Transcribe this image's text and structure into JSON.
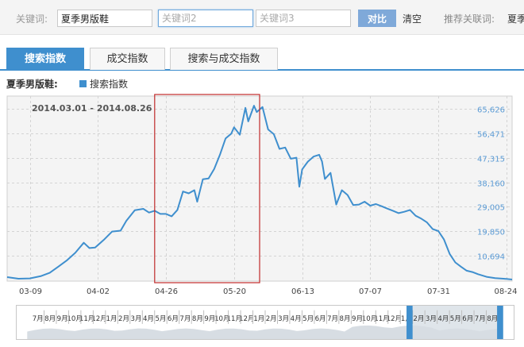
{
  "search": {
    "keyword_label": "关键词:",
    "keyword1_value": "夏季男版鞋",
    "keyword2_placeholder": "关键词2",
    "keyword3_placeholder": "关键词3",
    "compare_button": "对比",
    "clear_link": "清空",
    "recommend_label": "推荐关联词:",
    "recommend_item": "夏季"
  },
  "tabs": [
    {
      "label": "搜索指数",
      "active": true
    },
    {
      "label": "成交指数",
      "active": false
    },
    {
      "label": "搜索与成交指数",
      "active": false
    }
  ],
  "series_header": {
    "keyword": "夏季男版鞋:",
    "legend_label": "搜索指数"
  },
  "colors": {
    "accent": "#3f8fce",
    "highlight_border": "#c02a2a"
  },
  "chart_data": {
    "type": "line",
    "date_range": "2014.03.01 - 2014.08.26",
    "x_ticks": [
      "03-09",
      "04-02",
      "04-26",
      "05-20",
      "06-13",
      "07-07",
      "07-31",
      "08-24"
    ],
    "y_ticks": [
      "65,626",
      "56,471",
      "47,315",
      "38,160",
      "29,005",
      "19,850",
      "10,694"
    ],
    "ylim": [
      1100,
      70500
    ],
    "x_range": [
      "2014-03-01",
      "2014-08-26"
    ],
    "grid": true,
    "legend": "top-left",
    "selected_range": [
      "2014-04-22",
      "2014-05-29"
    ],
    "series": [
      {
        "name": "搜索指数",
        "points": [
          [
            "2014-03-01",
            2600
          ],
          [
            "2014-03-05",
            2000
          ],
          [
            "2014-03-09",
            2100
          ],
          [
            "2014-03-13",
            3000
          ],
          [
            "2014-03-16",
            4200
          ],
          [
            "2014-03-19",
            6500
          ],
          [
            "2014-03-22",
            8800
          ],
          [
            "2014-03-25",
            11700
          ],
          [
            "2014-03-28",
            15500
          ],
          [
            "2014-03-30",
            13500
          ],
          [
            "2014-04-01",
            13700
          ],
          [
            "2014-04-04",
            16500
          ],
          [
            "2014-04-07",
            19700
          ],
          [
            "2014-04-10",
            20000
          ],
          [
            "2014-04-12",
            23700
          ],
          [
            "2014-04-15",
            27700
          ],
          [
            "2014-04-18",
            28200
          ],
          [
            "2014-04-20",
            26800
          ],
          [
            "2014-04-22",
            27500
          ],
          [
            "2014-04-24",
            26300
          ],
          [
            "2014-04-26",
            26300
          ],
          [
            "2014-04-28",
            25400
          ],
          [
            "2014-04-30",
            27800
          ],
          [
            "2014-05-02",
            34700
          ],
          [
            "2014-05-04",
            34000
          ],
          [
            "2014-05-06",
            35200
          ],
          [
            "2014-05-07",
            30900
          ],
          [
            "2014-05-09",
            39300
          ],
          [
            "2014-05-11",
            39600
          ],
          [
            "2014-05-13",
            43200
          ],
          [
            "2014-05-15",
            48500
          ],
          [
            "2014-05-17",
            54600
          ],
          [
            "2014-05-19",
            56400
          ],
          [
            "2014-05-20",
            58800
          ],
          [
            "2014-05-22",
            56000
          ],
          [
            "2014-05-24",
            66100
          ],
          [
            "2014-05-25",
            61000
          ],
          [
            "2014-05-27",
            66900
          ],
          [
            "2014-05-28",
            64500
          ],
          [
            "2014-05-30",
            66400
          ],
          [
            "2014-06-01",
            58000
          ],
          [
            "2014-06-03",
            56200
          ],
          [
            "2014-06-05",
            50700
          ],
          [
            "2014-06-07",
            51200
          ],
          [
            "2014-06-09",
            47000
          ],
          [
            "2014-06-11",
            47400
          ],
          [
            "2014-06-12",
            36500
          ],
          [
            "2014-06-13",
            43000
          ],
          [
            "2014-06-15",
            45900
          ],
          [
            "2014-06-17",
            47800
          ],
          [
            "2014-06-19",
            48500
          ],
          [
            "2014-06-20",
            46000
          ],
          [
            "2014-06-21",
            39400
          ],
          [
            "2014-06-23",
            41700
          ],
          [
            "2014-06-25",
            29800
          ],
          [
            "2014-06-27",
            35200
          ],
          [
            "2014-06-29",
            33400
          ],
          [
            "2014-07-01",
            29600
          ],
          [
            "2014-07-03",
            29800
          ],
          [
            "2014-07-05",
            30900
          ],
          [
            "2014-07-07",
            29400
          ],
          [
            "2014-07-09",
            30000
          ],
          [
            "2014-07-11",
            29200
          ],
          [
            "2014-07-13",
            28300
          ],
          [
            "2014-07-15",
            27500
          ],
          [
            "2014-07-17",
            26600
          ],
          [
            "2014-07-19",
            27100
          ],
          [
            "2014-07-21",
            27800
          ],
          [
            "2014-07-23",
            25600
          ],
          [
            "2014-07-25",
            24500
          ],
          [
            "2014-07-27",
            23100
          ],
          [
            "2014-07-29",
            20600
          ],
          [
            "2014-07-31",
            19900
          ],
          [
            "2014-08-02",
            16700
          ],
          [
            "2014-08-04",
            11300
          ],
          [
            "2014-08-06",
            8100
          ],
          [
            "2014-08-08",
            6500
          ],
          [
            "2014-08-10",
            5000
          ],
          [
            "2014-08-12",
            4500
          ],
          [
            "2014-08-14",
            3700
          ],
          [
            "2014-08-17",
            2700
          ],
          [
            "2014-08-20",
            2200
          ],
          [
            "2014-08-24",
            1900
          ],
          [
            "2014-08-26",
            1700
          ]
        ]
      }
    ]
  },
  "timeline": {
    "month_labels": [
      "7月",
      "8月",
      "9月",
      "10月",
      "11月",
      "12月",
      "1月",
      "2月",
      "3月",
      "4月",
      "5月",
      "6月",
      "7月",
      "8月",
      "9月",
      "10月",
      "11月",
      "12月",
      "1月",
      "2月",
      "3月",
      "4月",
      "5月",
      "6月",
      "7月",
      "8月",
      "9月",
      "10月",
      "11月",
      "12月",
      "1月",
      "2月",
      "3月",
      "4月",
      "5月",
      "6月",
      "7月",
      "8月"
    ],
    "selected_months": 7
  }
}
